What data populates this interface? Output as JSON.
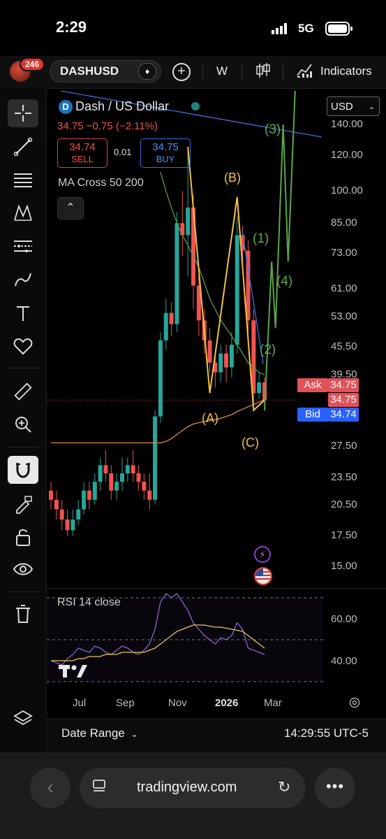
{
  "status": {
    "time": "2:29",
    "network": "5G"
  },
  "toolbar": {
    "notifications": "246",
    "symbol": "DASHUSD",
    "add_label": "+",
    "interval": "W",
    "indicators_label": "Indicators"
  },
  "legend": {
    "title": "Dash / US Dollar",
    "price": "34.75",
    "change": "−0.75 (−2.11%)",
    "sell_price": "34.74",
    "sell_label": "SELL",
    "spread": "0.01",
    "buy_price": "34.75",
    "buy_label": "BUY",
    "ma_label": "MA Cross 50 200",
    "currency": "USD"
  },
  "price_axis": [
    "140.00",
    "120.00",
    "100.00",
    "85.00",
    "73.00",
    "61.00",
    "53.00",
    "45.50",
    "39.50",
    "27.50",
    "23.50",
    "20.50",
    "17.50",
    "15.00"
  ],
  "price_labels": {
    "ask_label": "Ask",
    "ask": "34.75",
    "last": "34.75",
    "bid_label": "Bid",
    "bid": "34.74"
  },
  "wave_labels": {
    "A": "(A)",
    "B": "(B)",
    "C": "(C)",
    "w1": "(1)",
    "w2": "(2)",
    "w3": "(3)",
    "w4": "(4)"
  },
  "time_axis": [
    "Jul",
    "Sep",
    "Nov",
    "2026",
    "Mar"
  ],
  "rsi": {
    "label": "RSI 14 close",
    "levels": [
      "60.00",
      "40.00"
    ]
  },
  "bottom": {
    "date_range": "Date Range",
    "timestamp": "14:29:55 UTC-5"
  },
  "browser": {
    "url": "tradingview.com"
  },
  "colors": {
    "up": "#26a69a",
    "down": "#ef5350",
    "wave_abc": "#f5c242",
    "wave_impulse": "#5aa84a",
    "ma50": "#5d9c4f",
    "ma200": "#e08a3c",
    "trend": "#3f6fe0",
    "rsi": "#8a63d2",
    "rsi_ma": "#e6c84a"
  },
  "chart_data": {
    "type": "candlestick",
    "symbol": "DASHUSD",
    "interval": "W",
    "scale": "log",
    "ylim": [
      13,
      145
    ],
    "last_price": 34.75,
    "x_ticks": [
      "Jul",
      "Sep",
      "Nov",
      "2026",
      "Mar"
    ],
    "candles": [
      [
        22,
        21,
        23,
        20
      ],
      [
        21,
        20,
        22,
        19
      ],
      [
        20,
        19,
        21,
        18
      ],
      [
        19,
        18,
        20,
        17.5
      ],
      [
        18,
        19,
        20,
        17.5
      ],
      [
        19,
        20,
        21,
        18.5
      ],
      [
        20,
        22,
        23,
        19.5
      ],
      [
        22,
        21,
        23,
        20
      ],
      [
        21,
        23,
        24,
        20.5
      ],
      [
        23,
        25,
        26,
        22
      ],
      [
        25,
        24,
        27,
        23
      ],
      [
        24,
        22,
        25,
        21
      ],
      [
        22,
        23,
        24,
        21
      ],
      [
        23,
        24,
        26,
        22
      ],
      [
        24,
        25,
        26,
        23
      ],
      [
        25,
        24,
        27,
        23
      ],
      [
        24,
        23,
        25,
        22
      ],
      [
        23,
        22,
        24,
        21
      ],
      [
        22,
        21,
        24,
        20
      ],
      [
        21,
        32,
        33,
        20.5
      ],
      [
        32,
        47,
        49,
        31
      ],
      [
        47,
        54,
        58,
        45
      ],
      [
        54,
        51,
        57,
        48
      ],
      [
        51,
        85,
        90,
        49
      ],
      [
        85,
        80,
        100,
        72
      ],
      [
        80,
        92,
        125,
        65
      ],
      [
        92,
        62,
        98,
        55
      ],
      [
        62,
        52,
        66,
        48
      ],
      [
        52,
        47,
        55,
        44
      ],
      [
        47,
        42,
        50,
        40
      ],
      [
        42,
        40,
        44,
        37
      ],
      [
        40,
        44,
        46,
        38
      ],
      [
        44,
        41,
        46,
        38
      ],
      [
        41,
        46,
        49,
        39
      ],
      [
        46,
        80,
        88,
        44
      ],
      [
        80,
        74,
        84,
        66
      ],
      [
        74,
        52,
        78,
        48
      ],
      [
        52,
        36,
        55,
        33
      ],
      [
        36,
        38,
        40,
        35
      ],
      [
        38,
        34.75,
        39,
        33.5
      ]
    ],
    "series": [
      {
        "name": "MA 50",
        "values": [
          null,
          null,
          null,
          null,
          null,
          null,
          null,
          null,
          null,
          null,
          null,
          null,
          null,
          null,
          null,
          null,
          null,
          null,
          null,
          null,
          110,
          100,
          92,
          85,
          80,
          76,
          72,
          68,
          63,
          58,
          55,
          52,
          50,
          48,
          46,
          44,
          42,
          41,
          40,
          39.5
        ]
      },
      {
        "name": "MA 200",
        "values": [
          28,
          28,
          28,
          28,
          28,
          28,
          28,
          28,
          28,
          28,
          28,
          28,
          28,
          28,
          28,
          28,
          28,
          28,
          28,
          28,
          28,
          28.2,
          28.6,
          29.2,
          29.8,
          30.4,
          30.8,
          31,
          31.2,
          31.3,
          31.5,
          31.7,
          32,
          32.3,
          32.8,
          33.2,
          33.6,
          34,
          34.4,
          34.8
        ]
      }
    ],
    "waves": [
      {
        "label": "(A)",
        "price": 36
      },
      {
        "label": "(B)",
        "price": 97
      },
      {
        "label": "(C)",
        "price": 33
      },
      {
        "label": "(1)",
        "price": 70
      },
      {
        "label": "(2)",
        "price": 50
      },
      {
        "label": "(3)",
        "price": 140
      },
      {
        "label": "(4)",
        "price": 70
      }
    ],
    "rsi": {
      "title": "RSI 14 close",
      "ylim": [
        30,
        70
      ],
      "levels": [
        60,
        40
      ],
      "values": [
        40,
        39,
        38,
        41,
        43,
        46,
        45,
        44,
        47,
        46,
        44,
        43,
        45,
        47,
        46,
        44,
        43,
        45,
        48,
        55,
        68,
        72,
        70,
        72,
        68,
        64,
        58,
        55,
        52,
        50,
        48,
        51,
        50,
        52,
        58,
        55,
        46,
        45,
        44,
        43
      ],
      "ma": [
        40,
        40,
        40,
        40,
        40,
        41,
        41,
        42,
        42,
        42,
        43,
        43,
        43,
        44,
        44,
        44,
        44,
        44,
        45,
        46,
        48,
        50,
        52,
        54,
        55,
        56,
        57,
        57,
        57,
        56.5,
        56,
        56,
        55.5,
        55,
        54.5,
        54,
        52,
        50,
        48,
        46
      ]
    }
  }
}
